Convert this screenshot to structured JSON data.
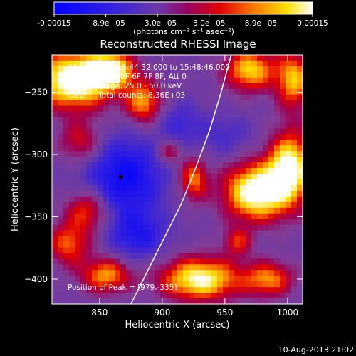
{
  "colorbar": {
    "ticks": [
      "-0.00015",
      "−8.9e−05",
      "−3.0e−05",
      "3.0e−05",
      "8.9e−05",
      "0.00015"
    ],
    "units": "(photons cm⁻² s⁻¹ asec⁻²)"
  },
  "colors": {
    "background": "#000000",
    "frame": "#ffffff",
    "limb": "#ffffff",
    "marker": "#000000"
  },
  "chart_data": {
    "type": "heatmap",
    "title": "Reconstructed RHESSI Image",
    "xlabel": "Heliocentric X (arcsec)",
    "ylabel": "Heliocentric Y (arcsec)",
    "xlim": [
      812,
      1012
    ],
    "ylim": [
      -420,
      -220
    ],
    "xticks": [
      850,
      900,
      950,
      1000
    ],
    "yticks": [
      -250,
      -300,
      -350,
      -400
    ],
    "colormap": "rainbow blue-purple-red-yellow-white",
    "vrange": [
      -0.00015,
      0.00015
    ],
    "annotations": [
      "20-Feb-2011 15:44:32.000 to 15:48:46.000",
      "Detectors: 4F 5F 6F 7F 8F, Att 0",
      "Energy Range: 25.0 - 50.0 keV",
      "Clean    Total counts: 8.36E+03"
    ],
    "peak_text": "Position of Peak = [979,-335]",
    "marker": {
      "x": 867,
      "y": -318
    },
    "limb_points": [
      [
        875,
        -420
      ],
      [
        885,
        -400
      ],
      [
        900,
        -370
      ],
      [
        915,
        -340
      ],
      [
        927,
        -310
      ],
      [
        938,
        -280
      ],
      [
        947,
        -250
      ],
      [
        955,
        -220
      ]
    ],
    "blobs": [
      {
        "x": 830,
        "y": -240,
        "sx": 22,
        "sy": 16,
        "v": 0.0002
      },
      {
        "x": 860,
        "y": -232,
        "sx": 12,
        "sy": 10,
        "v": 0.00015
      },
      {
        "x": 885,
        "y": -258,
        "sx": 10,
        "sy": 12,
        "v": 0.00012
      },
      {
        "x": 970,
        "y": -232,
        "sx": 14,
        "sy": 12,
        "v": 0.00014
      },
      {
        "x": 1005,
        "y": -240,
        "sx": 10,
        "sy": 16,
        "v": 0.00013
      },
      {
        "x": 835,
        "y": -290,
        "sx": 12,
        "sy": 12,
        "v": 8e-05
      },
      {
        "x": 925,
        "y": -320,
        "sx": 8,
        "sy": 12,
        "v": 0.00011
      },
      {
        "x": 905,
        "y": -298,
        "sx": 7,
        "sy": 7,
        "v": 7e-05
      },
      {
        "x": 975,
        "y": -330,
        "sx": 18,
        "sy": 16,
        "v": 0.00019
      },
      {
        "x": 1002,
        "y": -310,
        "sx": 12,
        "sy": 20,
        "v": 0.00017
      },
      {
        "x": 840,
        "y": -345,
        "sx": 12,
        "sy": 12,
        "v": 0.0001
      },
      {
        "x": 825,
        "y": -372,
        "sx": 12,
        "sy": 12,
        "v": 0.0001
      },
      {
        "x": 855,
        "y": -397,
        "sx": 14,
        "sy": 10,
        "v": 0.00012
      },
      {
        "x": 930,
        "y": -400,
        "sx": 22,
        "sy": 12,
        "v": 0.00017
      },
      {
        "x": 985,
        "y": -400,
        "sx": 14,
        "sy": 10,
        "v": 0.00011
      },
      {
        "x": 960,
        "y": -370,
        "sx": 8,
        "sy": 8,
        "v": 8e-05
      },
      {
        "x": 870,
        "y": -318,
        "sx": 22,
        "sy": 22,
        "v": -0.00011
      },
      {
        "x": 880,
        "y": -365,
        "sx": 16,
        "sy": 14,
        "v": -8e-05
      },
      {
        "x": 915,
        "y": -275,
        "sx": 12,
        "sy": 12,
        "v": -5e-05
      },
      {
        "x": 950,
        "y": -285,
        "sx": 16,
        "sy": 12,
        "v": -4e-05
      }
    ]
  },
  "footer": {
    "date": "10-Aug-2013 21:02"
  }
}
